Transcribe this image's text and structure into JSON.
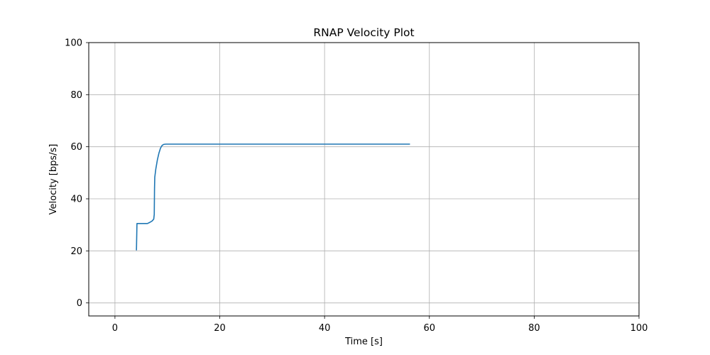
{
  "chart_data": {
    "type": "line",
    "title": "RNAP Velocity Plot",
    "xlabel": "Time [s]",
    "ylabel": "Velocity [bps/s]",
    "xlim": [
      -5,
      100
    ],
    "ylim": [
      -5,
      100
    ],
    "xticks": [
      0,
      20,
      40,
      60,
      80,
      100
    ],
    "yticks": [
      0,
      20,
      40,
      60,
      80,
      100
    ],
    "grid": true,
    "line_color": "#1f77b4",
    "series": [
      {
        "x": [
          4.1,
          4.2,
          4.3,
          6.2,
          6.7,
          7.1,
          7.4,
          7.5,
          7.55,
          7.6,
          7.8,
          8.1,
          8.4,
          8.7,
          9.0,
          9.3,
          9.7,
          10.5,
          56.3
        ],
        "y": [
          20.2,
          30.5,
          30.5,
          30.5,
          31.0,
          31.5,
          32.2,
          34.0,
          44.0,
          48.3,
          51.5,
          55.0,
          57.6,
          59.5,
          60.5,
          60.9,
          61.0,
          61.0,
          61.0
        ]
      }
    ]
  }
}
